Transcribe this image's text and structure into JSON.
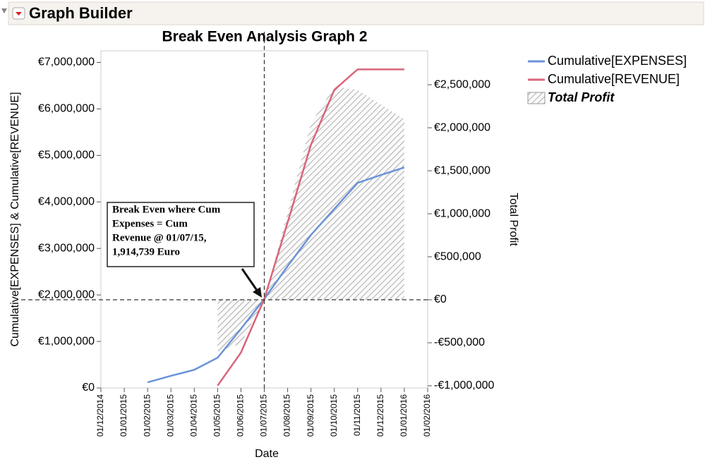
{
  "header": {
    "title": "Graph Builder"
  },
  "chart_data": {
    "type": "line",
    "title": "Break Even Analysis Graph 2",
    "x_label": "Date",
    "y_label": "Cumulative[EXPENSES] & Cumulative[REVENUE]",
    "y2_label": "Total Profit",
    "categories": [
      "01/12/2014",
      "01/01/2015",
      "01/02/2015",
      "01/03/2015",
      "01/04/2015",
      "01/05/2015",
      "01/06/2015",
      "01/07/2015",
      "01/08/2015",
      "01/09/2015",
      "01/10/2015",
      "01/11/2015",
      "01/12/2015",
      "01/01/2016",
      "01/02/2016"
    ],
    "series": [
      {
        "name": "Cumulative[EXPENSES]",
        "color": "#6a93d8",
        "values": [
          null,
          null,
          120000,
          260000,
          390000,
          650000,
          1270000,
          1914739,
          2620000,
          3290000,
          3850000,
          4410000,
          4580000,
          4740000,
          null
        ]
      },
      {
        "name": "Cumulative[REVENUE]",
        "color": "#d9657a",
        "values": [
          null,
          null,
          null,
          null,
          null,
          50000,
          760000,
          1914739,
          3560000,
          5230000,
          6410000,
          6850000,
          6850000,
          6850000,
          null
        ]
      },
      {
        "name": "Total Profit",
        "type": "area",
        "axis": "y2",
        "color": "#9a9a9a",
        "values": [
          null,
          null,
          null,
          null,
          null,
          -600000,
          -510000,
          0,
          1020000,
          2050000,
          2480000,
          2440000,
          2270000,
          2100000,
          null
        ]
      }
    ],
    "ylim": [
      0,
      7250000
    ],
    "yticks": [
      {
        "value": 0,
        "label": "€0"
      },
      {
        "value": 1000000,
        "label": "€1,000,000"
      },
      {
        "value": 2000000,
        "label": "€2,000,000"
      },
      {
        "value": 3000000,
        "label": "€3,000,000"
      },
      {
        "value": 4000000,
        "label": "€4,000,000"
      },
      {
        "value": 5000000,
        "label": "€5,000,000"
      },
      {
        "value": 6000000,
        "label": "€6,000,000"
      },
      {
        "value": 7000000,
        "label": "€7,000,000"
      }
    ],
    "y2lim": [
      -1025000,
      2895000
    ],
    "y2ticks": [
      {
        "value": -1000000,
        "label": "-€1,000,000"
      },
      {
        "value": -500000,
        "label": "-€500,000"
      },
      {
        "value": 0,
        "label": "€0"
      },
      {
        "value": 500000,
        "label": "€500,000"
      },
      {
        "value": 1000000,
        "label": "€1,000,000"
      },
      {
        "value": 1500000,
        "label": "€1,500,000"
      },
      {
        "value": 2000000,
        "label": "€2,000,000"
      },
      {
        "value": 2500000,
        "label": "€2,500,000"
      }
    ],
    "reference_lines": {
      "x": "01/07/2015",
      "y2": 0
    },
    "annotation": [
      "Break Even where Cum",
      "Expenses = Cum",
      "Revenue @ 01/07/15,",
      "1,914,739 Euro"
    ]
  }
}
